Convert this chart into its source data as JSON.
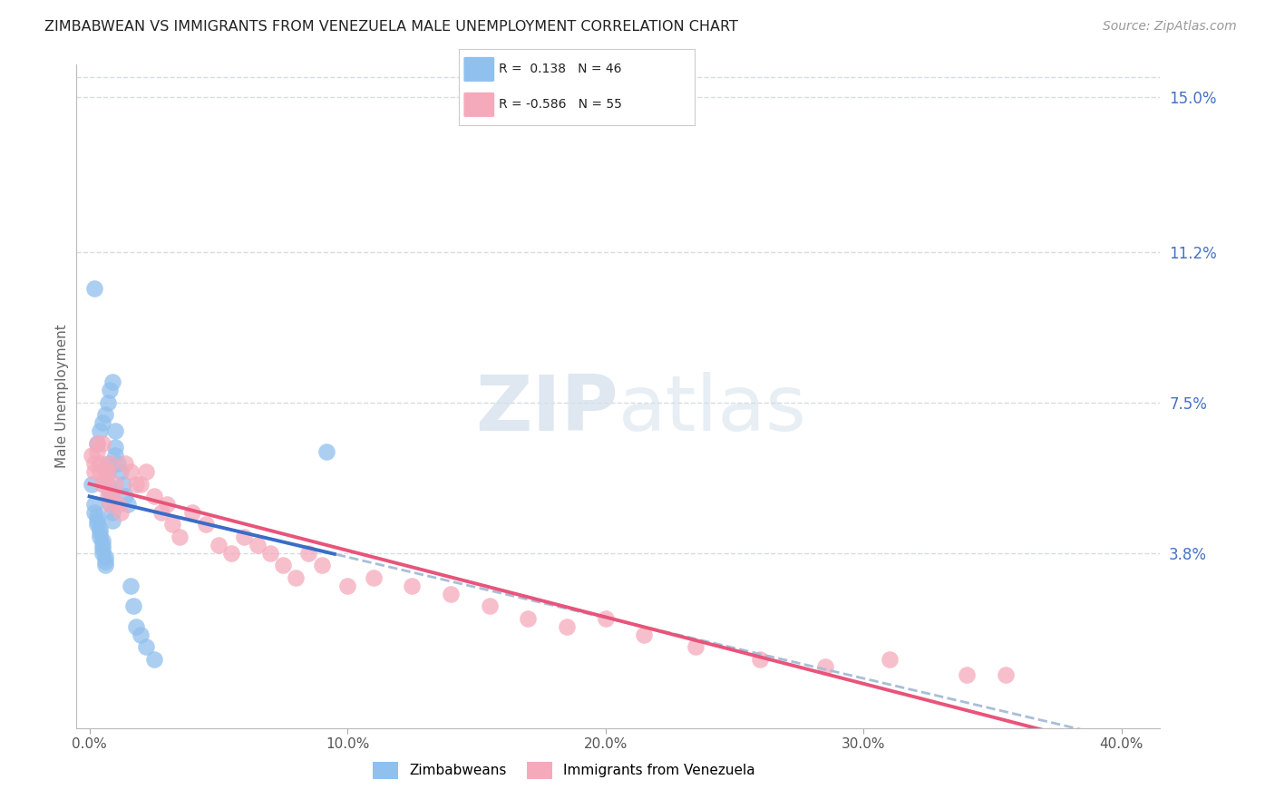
{
  "title": "ZIMBABWEAN VS IMMIGRANTS FROM VENEZUELA MALE UNEMPLOYMENT CORRELATION CHART",
  "source": "Source: ZipAtlas.com",
  "ylabel": "Male Unemployment",
  "xlabel_ticks": [
    "0.0%",
    "10.0%",
    "20.0%",
    "30.0%",
    "40.0%"
  ],
  "xlabel_vals": [
    0.0,
    0.1,
    0.2,
    0.3,
    0.4
  ],
  "ylabel_ticks": [
    "15.0%",
    "11.2%",
    "7.5%",
    "3.8%"
  ],
  "ylabel_vals": [
    0.15,
    0.112,
    0.075,
    0.038
  ],
  "xlim": [
    -0.005,
    0.415
  ],
  "ylim": [
    -0.005,
    0.158
  ],
  "zim_R": 0.138,
  "zim_N": 46,
  "ven_R": -0.586,
  "ven_N": 55,
  "blue_scatter_color": "#90C0ED",
  "pink_scatter_color": "#F5AABB",
  "blue_line_color": "#3B6CC7",
  "pink_line_color": "#E8547A",
  "dashed_line_color": "#A8BED8",
  "grid_color": "#D5DDE5",
  "title_color": "#222222",
  "axis_tick_color": "#555555",
  "right_tick_color": "#4472C4",
  "watermark_color": "#C5D5E5",
  "background_color": "#FFFFFF",
  "zim_x": [
    0.001,
    0.002,
    0.002,
    0.003,
    0.003,
    0.003,
    0.004,
    0.004,
    0.004,
    0.005,
    0.005,
    0.005,
    0.005,
    0.006,
    0.006,
    0.006,
    0.007,
    0.007,
    0.007,
    0.008,
    0.008,
    0.009,
    0.009,
    0.01,
    0.01,
    0.011,
    0.012,
    0.013,
    0.014,
    0.015,
    0.016,
    0.017,
    0.018,
    0.02,
    0.022,
    0.025,
    0.003,
    0.004,
    0.005,
    0.006,
    0.007,
    0.008,
    0.009,
    0.01,
    0.092,
    0.002
  ],
  "zim_y": [
    0.055,
    0.05,
    0.048,
    0.047,
    0.046,
    0.045,
    0.044,
    0.043,
    0.042,
    0.041,
    0.04,
    0.039,
    0.038,
    0.037,
    0.036,
    0.035,
    0.06,
    0.058,
    0.055,
    0.053,
    0.05,
    0.048,
    0.046,
    0.064,
    0.062,
    0.06,
    0.058,
    0.055,
    0.052,
    0.05,
    0.03,
    0.025,
    0.02,
    0.018,
    0.015,
    0.012,
    0.065,
    0.068,
    0.07,
    0.072,
    0.075,
    0.078,
    0.08,
    0.068,
    0.063,
    0.103
  ],
  "ven_x": [
    0.001,
    0.002,
    0.002,
    0.003,
    0.003,
    0.004,
    0.004,
    0.005,
    0.005,
    0.006,
    0.006,
    0.007,
    0.007,
    0.008,
    0.008,
    0.009,
    0.01,
    0.011,
    0.012,
    0.014,
    0.016,
    0.018,
    0.02,
    0.022,
    0.025,
    0.028,
    0.03,
    0.032,
    0.035,
    0.04,
    0.045,
    0.05,
    0.055,
    0.06,
    0.065,
    0.07,
    0.075,
    0.08,
    0.085,
    0.09,
    0.1,
    0.11,
    0.125,
    0.14,
    0.155,
    0.17,
    0.185,
    0.2,
    0.215,
    0.235,
    0.26,
    0.285,
    0.31,
    0.34,
    0.355
  ],
  "ven_y": [
    0.062,
    0.06,
    0.058,
    0.065,
    0.063,
    0.06,
    0.058,
    0.065,
    0.055,
    0.058,
    0.055,
    0.052,
    0.058,
    0.06,
    0.05,
    0.052,
    0.055,
    0.05,
    0.048,
    0.06,
    0.058,
    0.055,
    0.055,
    0.058,
    0.052,
    0.048,
    0.05,
    0.045,
    0.042,
    0.048,
    0.045,
    0.04,
    0.038,
    0.042,
    0.04,
    0.038,
    0.035,
    0.032,
    0.038,
    0.035,
    0.03,
    0.032,
    0.03,
    0.028,
    0.025,
    0.022,
    0.02,
    0.022,
    0.018,
    0.015,
    0.012,
    0.01,
    0.012,
    0.008,
    0.008
  ]
}
